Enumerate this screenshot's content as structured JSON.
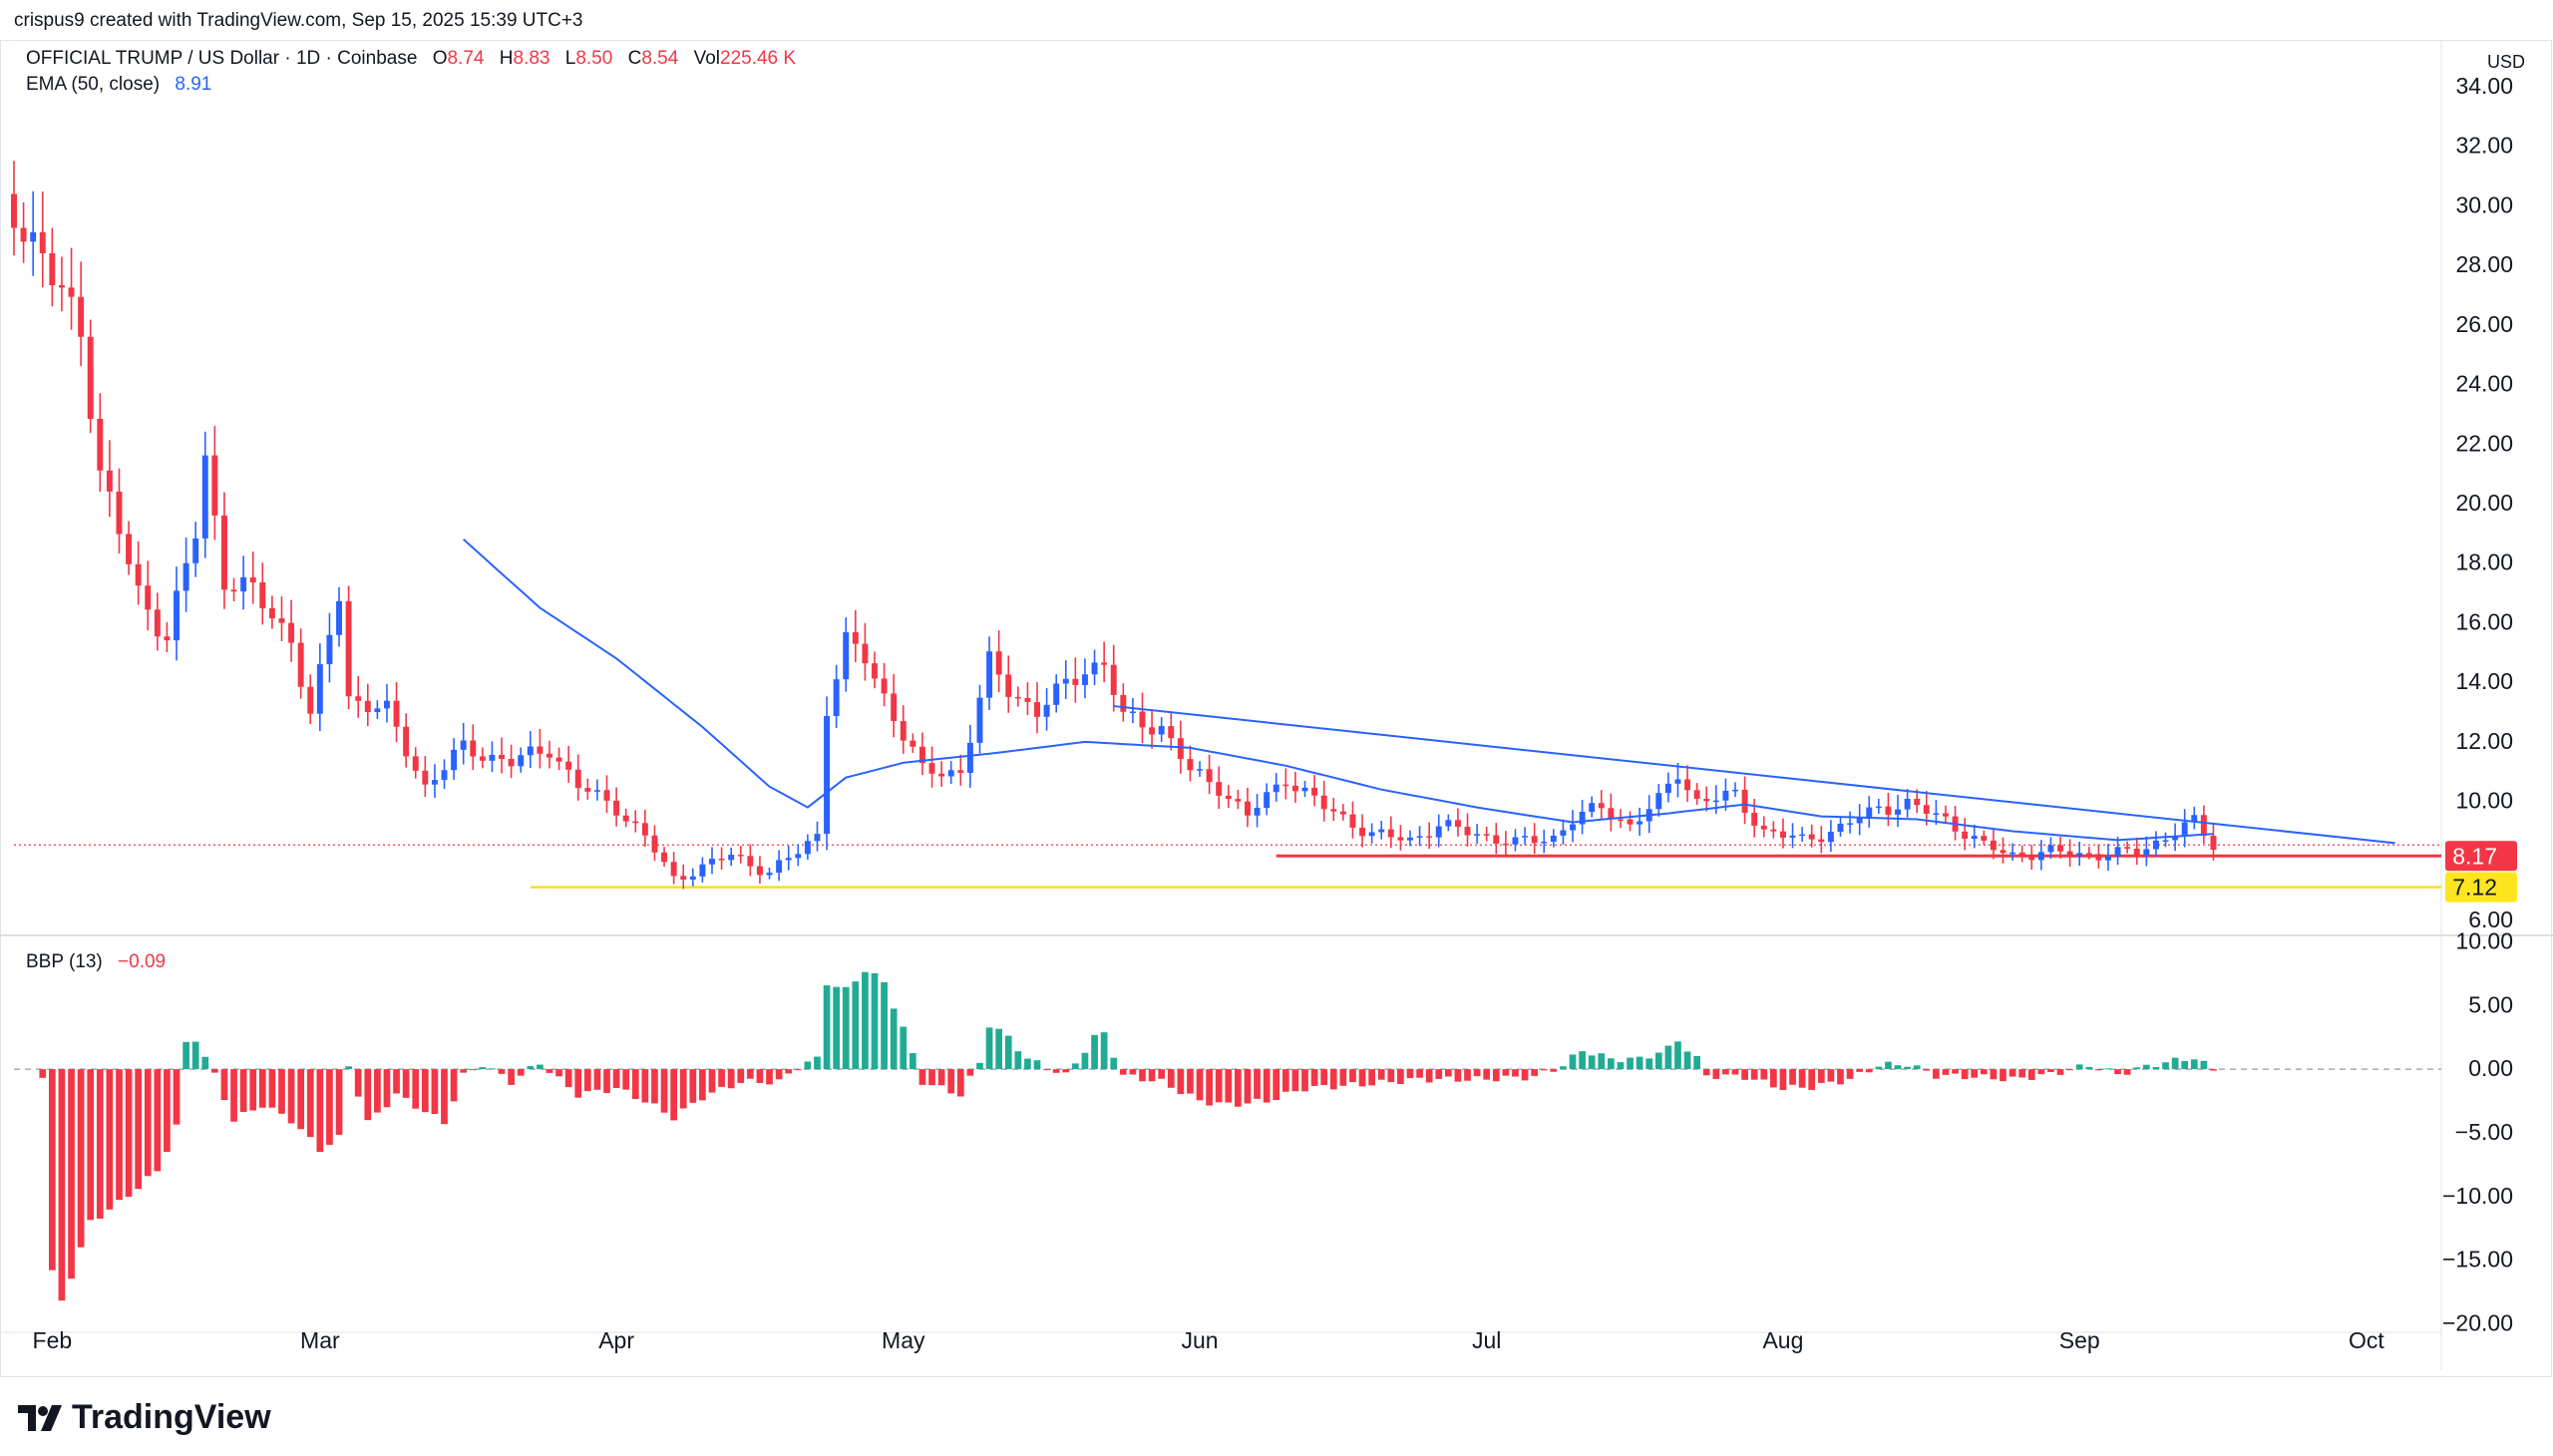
{
  "header": {
    "credit": "crispus9 created with TradingView.com, Sep 15, 2025 15:39 UTC+3",
    "symbol": "OFFICIAL TRUMP / US Dollar · 1D · Coinbase",
    "o_label": "O",
    "o_value": "8.74",
    "h_label": "H",
    "h_value": "8.83",
    "l_label": "L",
    "l_value": "8.50",
    "c_label": "C",
    "c_value": "8.54",
    "vol_label": "Vol",
    "vol_value": "225.46 K",
    "ema_label": "EMA (50, close)",
    "ema_value": "8.91",
    "bbp_label": "BBP (13)",
    "bbp_value": "−0.09",
    "currency": "USD"
  },
  "brand": {
    "name": "TradingView"
  },
  "colors": {
    "up": "#22ab94",
    "down": "#f23645",
    "candle_up": "#2962ff",
    "ema": "#2962ff",
    "support_red": "#f23645",
    "support_yellow": "#f5e020",
    "badge_red": "#f23645",
    "badge_yellow": "#fde61f"
  },
  "chart_data": [
    {
      "type": "candlestick",
      "title": "OFFICIAL TRUMP / US Dollar · 1D · Coinbase",
      "x_labels": [
        "Feb",
        "Mar",
        "Apr",
        "May",
        "Jun",
        "Jul",
        "Aug",
        "Sep",
        "Oct"
      ],
      "y_ticks": [
        "6.00",
        "10.00",
        "12.00",
        "14.00",
        "16.00",
        "18.00",
        "20.00",
        "22.00",
        "24.00",
        "26.00",
        "28.00",
        "30.00",
        "32.00",
        "34.00"
      ],
      "ylim": [
        5.5,
        34.5
      ],
      "x_range": [
        "2025-01-28",
        "2025-10-08"
      ],
      "close_key_points": [
        [
          "2025-01-28",
          30.0
        ],
        [
          "2025-02-01",
          27.5
        ],
        [
          "2025-02-04",
          26.0
        ],
        [
          "2025-02-06",
          21.0
        ],
        [
          "2025-02-08",
          19.0
        ],
        [
          "2025-02-10",
          17.0
        ],
        [
          "2025-02-13",
          15.5
        ],
        [
          "2025-02-16",
          19.0
        ],
        [
          "2025-02-17",
          21.5
        ],
        [
          "2025-02-19",
          17.5
        ],
        [
          "2025-02-22",
          17.0
        ],
        [
          "2025-02-26",
          15.5
        ],
        [
          "2025-02-28",
          12.8
        ],
        [
          "2025-03-03",
          17.0
        ],
        [
          "2025-03-04",
          13.5
        ],
        [
          "2025-03-08",
          13.0
        ],
        [
          "2025-03-12",
          10.5
        ],
        [
          "2025-03-16",
          11.8
        ],
        [
          "2025-03-21",
          11.3
        ],
        [
          "2025-03-25",
          11.8
        ],
        [
          "2025-03-28",
          10.5
        ],
        [
          "2025-04-01",
          9.8
        ],
        [
          "2025-04-04",
          8.8
        ],
        [
          "2025-04-07",
          7.4
        ],
        [
          "2025-04-10",
          7.8
        ],
        [
          "2025-04-13",
          8.2
        ],
        [
          "2025-04-17",
          7.6
        ],
        [
          "2025-04-20",
          8.3
        ],
        [
          "2025-04-22",
          8.9
        ],
        [
          "2025-04-23",
          13.2
        ],
        [
          "2025-04-25",
          15.3
        ],
        [
          "2025-04-27",
          14.8
        ],
        [
          "2025-04-30",
          12.9
        ],
        [
          "2025-05-03",
          11.0
        ],
        [
          "2025-05-07",
          11.0
        ],
        [
          "2025-05-10",
          14.6
        ],
        [
          "2025-05-12",
          13.8
        ],
        [
          "2025-05-15",
          13.0
        ],
        [
          "2025-05-20",
          14.5
        ],
        [
          "2025-05-22",
          14.6
        ],
        [
          "2025-05-24",
          12.8
        ],
        [
          "2025-05-28",
          12.5
        ],
        [
          "2025-05-31",
          11.0
        ],
        [
          "2025-06-03",
          10.5
        ],
        [
          "2025-06-06",
          9.5
        ],
        [
          "2025-06-10",
          10.8
        ],
        [
          "2025-06-14",
          9.8
        ],
        [
          "2025-06-19",
          8.9
        ],
        [
          "2025-06-23",
          8.7
        ],
        [
          "2025-06-26",
          9.2
        ],
        [
          "2025-06-30",
          8.9
        ],
        [
          "2025-07-04",
          8.6
        ],
        [
          "2025-07-08",
          8.8
        ],
        [
          "2025-07-10",
          9.4
        ],
        [
          "2025-07-13",
          9.8
        ],
        [
          "2025-07-16",
          9.2
        ],
        [
          "2025-07-19",
          10.0
        ],
        [
          "2025-07-21",
          11.0
        ],
        [
          "2025-07-23",
          10.0
        ],
        [
          "2025-07-27",
          10.2
        ],
        [
          "2025-07-30",
          9.0
        ],
        [
          "2025-08-03",
          8.7
        ],
        [
          "2025-08-07",
          9.1
        ],
        [
          "2025-08-11",
          9.8
        ],
        [
          "2025-08-14",
          9.9
        ],
        [
          "2025-08-18",
          9.4
        ],
        [
          "2025-08-22",
          8.5
        ],
        [
          "2025-08-25",
          8.2
        ],
        [
          "2025-08-29",
          8.3
        ],
        [
          "2025-09-03",
          8.2
        ],
        [
          "2025-09-07",
          8.3
        ],
        [
          "2025-09-10",
          8.8
        ],
        [
          "2025-09-13",
          9.3
        ],
        [
          "2025-09-15",
          8.54
        ]
      ],
      "ema_key_points": [
        [
          "2025-03-16",
          18.8
        ],
        [
          "2025-03-24",
          16.5
        ],
        [
          "2025-04-01",
          14.8
        ],
        [
          "2025-04-10",
          12.5
        ],
        [
          "2025-04-17",
          10.5
        ],
        [
          "2025-04-21",
          9.8
        ],
        [
          "2025-04-25",
          10.8
        ],
        [
          "2025-05-01",
          11.3
        ],
        [
          "2025-05-10",
          11.6
        ],
        [
          "2025-05-20",
          12.0
        ],
        [
          "2025-05-31",
          11.8
        ],
        [
          "2025-06-10",
          11.2
        ],
        [
          "2025-06-20",
          10.4
        ],
        [
          "2025-06-30",
          9.8
        ],
        [
          "2025-07-10",
          9.3
        ],
        [
          "2025-07-20",
          9.6
        ],
        [
          "2025-07-28",
          9.9
        ],
        [
          "2025-08-05",
          9.5
        ],
        [
          "2025-08-15",
          9.4
        ],
        [
          "2025-08-25",
          9.0
        ],
        [
          "2025-09-05",
          8.7
        ],
        [
          "2025-09-15",
          8.91
        ]
      ],
      "trendline": {
        "from": [
          "2025-05-23",
          13.2
        ],
        "to": [
          "2025-10-04",
          8.6
        ]
      },
      "support_levels": [
        {
          "value": 8.17,
          "label": "8.17",
          "from": "2025-06-09",
          "to": "2025-10-08",
          "color": "red"
        },
        {
          "value": 7.12,
          "label": "7.12",
          "from": "2025-03-23",
          "to": "2025-10-08",
          "color": "yellow"
        }
      ],
      "last_price": 8.54
    },
    {
      "type": "bar",
      "title": "BBP (13)",
      "y_ticks": [
        "10.00",
        "5.00",
        "0.00",
        "−5.00",
        "−10.00",
        "−15.00",
        "−20.00"
      ],
      "ylim": [
        -20.5,
        10.5
      ],
      "key_points": [
        [
          "2025-01-31",
          -0.5
        ],
        [
          "2025-02-01",
          -16
        ],
        [
          "2025-02-02",
          -18.2
        ],
        [
          "2025-02-03",
          -16.2
        ],
        [
          "2025-02-05",
          -12
        ],
        [
          "2025-02-08",
          -10.5
        ],
        [
          "2025-02-12",
          -8
        ],
        [
          "2025-02-14",
          -4.5
        ],
        [
          "2025-02-15",
          2.0
        ],
        [
          "2025-02-16",
          2.4
        ],
        [
          "2025-02-18",
          -0.5
        ],
        [
          "2025-02-20",
          -4
        ],
        [
          "2025-02-23",
          -2.8
        ],
        [
          "2025-02-26",
          -4
        ],
        [
          "2025-03-01",
          -6.3
        ],
        [
          "2025-03-03",
          -5.4
        ],
        [
          "2025-03-04",
          0.3
        ],
        [
          "2025-03-06",
          -4.2
        ],
        [
          "2025-03-09",
          -2.0
        ],
        [
          "2025-03-14",
          -4.2
        ],
        [
          "2025-03-16",
          -0.5
        ],
        [
          "2025-03-18",
          0.4
        ],
        [
          "2025-03-21",
          -1.0
        ],
        [
          "2025-03-24",
          0.5
        ],
        [
          "2025-03-26",
          -0.8
        ],
        [
          "2025-03-28",
          -2.0
        ],
        [
          "2025-04-01",
          -1.5
        ],
        [
          "2025-04-04",
          -2.5
        ],
        [
          "2025-04-07",
          -3.8
        ],
        [
          "2025-04-10",
          -2.2
        ],
        [
          "2025-04-14",
          -1.0
        ],
        [
          "2025-04-18",
          -1.0
        ],
        [
          "2025-04-20",
          0.2
        ],
        [
          "2025-04-22",
          0.8
        ],
        [
          "2025-04-23",
          6.8
        ],
        [
          "2025-04-25",
          6.2
        ],
        [
          "2025-04-27",
          7.8
        ],
        [
          "2025-04-29",
          6.8
        ],
        [
          "2025-05-01",
          3.2
        ],
        [
          "2025-05-03",
          -1.0
        ],
        [
          "2025-05-07",
          -2.0
        ],
        [
          "2025-05-09",
          0.5
        ],
        [
          "2025-05-10",
          3.5
        ],
        [
          "2025-05-12",
          2.5
        ],
        [
          "2025-05-14",
          0.8
        ],
        [
          "2025-05-18",
          -0.5
        ],
        [
          "2025-05-21",
          2.5
        ],
        [
          "2025-05-22",
          2.8
        ],
        [
          "2025-05-24",
          -0.5
        ],
        [
          "2025-05-28",
          -1.0
        ],
        [
          "2025-06-01",
          -2.5
        ],
        [
          "2025-06-04",
          -2.8
        ],
        [
          "2025-06-08",
          -2.5
        ],
        [
          "2025-06-12",
          -1.5
        ],
        [
          "2025-06-18",
          -1.2
        ],
        [
          "2025-06-24",
          -0.8
        ],
        [
          "2025-06-30",
          -0.8
        ],
        [
          "2025-07-06",
          -0.6
        ],
        [
          "2025-07-09",
          0.3
        ],
        [
          "2025-07-11",
          1.5
        ],
        [
          "2025-07-14",
          0.8
        ],
        [
          "2025-07-17",
          0.8
        ],
        [
          "2025-07-20",
          1.6
        ],
        [
          "2025-07-21",
          2.3
        ],
        [
          "2025-07-23",
          0.8
        ],
        [
          "2025-07-24",
          -0.5
        ],
        [
          "2025-07-28",
          -0.6
        ],
        [
          "2025-08-01",
          -1.5
        ],
        [
          "2025-08-04",
          -1.4
        ],
        [
          "2025-08-08",
          -0.8
        ],
        [
          "2025-08-11",
          0.3
        ],
        [
          "2025-08-14",
          0.4
        ],
        [
          "2025-08-17",
          -0.5
        ],
        [
          "2025-08-21",
          -0.6
        ],
        [
          "2025-08-25",
          -0.8
        ],
        [
          "2025-08-29",
          -0.4
        ],
        [
          "2025-09-02",
          0.3
        ],
        [
          "2025-09-05",
          -0.4
        ],
        [
          "2025-09-09",
          0.4
        ],
        [
          "2025-09-12",
          0.8
        ],
        [
          "2025-09-13",
          0.9
        ],
        [
          "2025-09-15",
          -0.09
        ]
      ]
    }
  ]
}
